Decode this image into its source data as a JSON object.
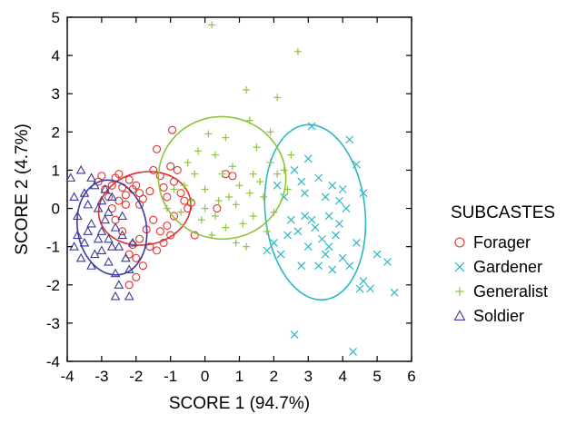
{
  "chart_data": {
    "type": "scatter",
    "xlabel": "SCORE 1 (94.7%)",
    "ylabel": "SCORE 2 (4.7%)",
    "xlim": [
      -4,
      6
    ],
    "ylim": [
      -4,
      5
    ],
    "xticks": [
      -4,
      -3,
      -2,
      -1,
      0,
      1,
      2,
      3,
      4,
      5,
      6
    ],
    "yticks": [
      -4,
      -3,
      -2,
      -1,
      0,
      1,
      2,
      3,
      4,
      5
    ],
    "grid": false,
    "legend": {
      "title": "SUBCASTES",
      "placement": "right"
    },
    "series": [
      {
        "name": "Forager",
        "marker": "circle",
        "color": "#e0302a",
        "ellipse": {
          "cx": -1.75,
          "cy": 0.0,
          "rx": 1.35,
          "ry": 0.95,
          "angle_deg": 12
        },
        "points": [
          [
            -3.1,
            0.7
          ],
          [
            -3.0,
            0.85
          ],
          [
            -2.9,
            0.5
          ],
          [
            -2.8,
            0.3
          ],
          [
            -2.7,
            0.6
          ],
          [
            -2.6,
            0.8
          ],
          [
            -2.5,
            0.9
          ],
          [
            -2.4,
            0.55
          ],
          [
            -2.3,
            0.35
          ],
          [
            -2.2,
            0.75
          ],
          [
            -2.1,
            0.5
          ],
          [
            -2.0,
            0.6
          ],
          [
            -1.9,
            0.4
          ],
          [
            -1.8,
            0.25
          ],
          [
            -1.6,
            0.45
          ],
          [
            -1.5,
            1.0
          ],
          [
            -1.4,
            1.55
          ],
          [
            -1.3,
            0.85
          ],
          [
            -1.2,
            0.55
          ],
          [
            -1.1,
            0.3
          ],
          [
            -1.0,
            1.1
          ],
          [
            -0.95,
            2.05
          ],
          [
            -0.9,
            0.7
          ],
          [
            -0.8,
            1.0
          ],
          [
            -0.7,
            0.4
          ],
          [
            -0.6,
            0.2
          ],
          [
            -0.5,
            0.0
          ],
          [
            -0.4,
            0.15
          ],
          [
            -0.9,
            -0.2
          ],
          [
            -1.1,
            -0.45
          ],
          [
            -1.3,
            -0.6
          ],
          [
            -1.5,
            -0.3
          ],
          [
            -1.7,
            -0.55
          ],
          [
            -1.9,
            -0.8
          ],
          [
            -2.1,
            -0.95
          ],
          [
            -2.2,
            -1.2
          ],
          [
            -2.0,
            -1.3
          ],
          [
            -1.8,
            -1.5
          ],
          [
            -2.0,
            -1.8
          ],
          [
            -2.2,
            -2.0
          ],
          [
            -2.6,
            -0.3
          ],
          [
            -2.4,
            -0.6
          ],
          [
            -2.7,
            0.0
          ],
          [
            -2.5,
            0.2
          ],
          [
            -1.6,
            -1.0
          ],
          [
            -1.2,
            -0.9
          ],
          [
            -1.0,
            -0.7
          ],
          [
            0.35,
            0.0
          ],
          [
            0.6,
            0.9
          ],
          [
            0.8,
            0.85
          ],
          [
            -0.3,
            -0.7
          ],
          [
            -1.4,
            -1.1
          ],
          [
            -2.3,
            0.1
          ],
          [
            -1.9,
            0.1
          ]
        ]
      },
      {
        "name": "Gardener",
        "marker": "x",
        "color": "#2ab8c2",
        "ellipse": {
          "cx": 3.2,
          "cy": -0.1,
          "rx": 1.45,
          "ry": 2.3,
          "angle_deg": 6
        },
        "points": [
          [
            2.6,
            1.0
          ],
          [
            2.8,
            0.7
          ],
          [
            3.0,
            1.3
          ],
          [
            3.1,
            2.15
          ],
          [
            3.3,
            0.8
          ],
          [
            3.5,
            0.3
          ],
          [
            3.7,
            0.6
          ],
          [
            3.9,
            0.2
          ],
          [
            4.1,
            0.0
          ],
          [
            4.2,
            1.8
          ],
          [
            4.4,
            1.15
          ],
          [
            4.6,
            0.4
          ],
          [
            2.3,
            0.3
          ],
          [
            2.5,
            -0.3
          ],
          [
            2.7,
            -0.6
          ],
          [
            2.9,
            -0.2
          ],
          [
            3.2,
            -0.5
          ],
          [
            3.4,
            -0.8
          ],
          [
            3.6,
            -1.0
          ],
          [
            3.8,
            -0.7
          ],
          [
            4.0,
            -1.3
          ],
          [
            4.2,
            -1.5
          ],
          [
            4.4,
            -0.9
          ],
          [
            4.6,
            -1.9
          ],
          [
            4.8,
            -2.1
          ],
          [
            5.0,
            -1.2
          ],
          [
            5.3,
            -1.4
          ],
          [
            5.5,
            -2.2
          ],
          [
            4.5,
            -2.1
          ],
          [
            3.3,
            -1.5
          ],
          [
            3.0,
            -1.0
          ],
          [
            2.8,
            -1.5
          ],
          [
            2.2,
            -1.2
          ],
          [
            2.0,
            -0.9
          ],
          [
            1.8,
            -1.1
          ],
          [
            2.4,
            -0.7
          ],
          [
            2.1,
            0.6
          ],
          [
            3.6,
            -0.2
          ],
          [
            3.9,
            -0.4
          ],
          [
            2.6,
            -3.3
          ],
          [
            4.3,
            -3.75
          ],
          [
            3.1,
            -0.3
          ],
          [
            3.5,
            -1.2
          ],
          [
            4.0,
            0.5
          ],
          [
            2.9,
            0.4
          ],
          [
            3.7,
            -1.6
          ]
        ]
      },
      {
        "name": "Generalist",
        "marker": "plus",
        "color": "#8fc340",
        "ellipse": {
          "cx": 0.5,
          "cy": 0.8,
          "rx": 1.85,
          "ry": 1.6,
          "angle_deg": -4
        },
        "points": [
          [
            0.2,
            4.8
          ],
          [
            2.7,
            4.1
          ],
          [
            1.2,
            3.1
          ],
          [
            2.1,
            2.9
          ],
          [
            1.3,
            2.3
          ],
          [
            1.9,
            2.0
          ],
          [
            0.6,
            1.85
          ],
          [
            0.1,
            1.95
          ],
          [
            0.3,
            1.4
          ],
          [
            -0.5,
            1.2
          ],
          [
            -0.2,
            1.5
          ],
          [
            0.8,
            1.1
          ],
          [
            1.5,
            1.6
          ],
          [
            2.5,
            1.4
          ],
          [
            2.3,
            1.0
          ],
          [
            1.0,
            0.6
          ],
          [
            0.5,
            0.9
          ],
          [
            0.0,
            0.5
          ],
          [
            -0.4,
            0.2
          ],
          [
            -0.7,
            -0.1
          ],
          [
            0.3,
            -0.2
          ],
          [
            0.9,
            0.1
          ],
          [
            1.4,
            -0.2
          ],
          [
            1.7,
            0.3
          ],
          [
            2.0,
            -0.1
          ],
          [
            0.6,
            -0.5
          ],
          [
            1.1,
            -0.4
          ],
          [
            -0.1,
            -0.3
          ],
          [
            -0.9,
            0.5
          ],
          [
            -1.1,
            0.0
          ],
          [
            1.6,
            0.7
          ],
          [
            2.4,
            0.5
          ],
          [
            0.4,
            0.2
          ],
          [
            0.7,
            0.3
          ],
          [
            1.3,
            0.4
          ],
          [
            -0.6,
            0.6
          ],
          [
            1.8,
            -0.6
          ],
          [
            0.2,
            -0.7
          ],
          [
            0.9,
            -0.9
          ],
          [
            1.2,
            -1.0
          ],
          [
            2.1,
            0.9
          ],
          [
            1.9,
            1.2
          ],
          [
            -0.3,
            0.9
          ],
          [
            0.0,
            0.0
          ],
          [
            1.4,
            0.9
          ]
        ]
      },
      {
        "name": "Soldier",
        "marker": "triangle",
        "color": "#3a3a9a",
        "ellipse": {
          "cx": -2.7,
          "cy": -0.5,
          "rx": 1.0,
          "ry": 1.25,
          "angle_deg": 10
        },
        "points": [
          [
            -3.9,
            0.8
          ],
          [
            -3.6,
            1.0
          ],
          [
            -3.5,
            0.4
          ],
          [
            -3.8,
            0.3
          ],
          [
            -3.7,
            -0.2
          ],
          [
            -3.4,
            0.1
          ],
          [
            -3.3,
            -0.4
          ],
          [
            -3.2,
            0.6
          ],
          [
            -3.1,
            0.0
          ],
          [
            -3.0,
            -0.6
          ],
          [
            -2.9,
            -0.3
          ],
          [
            -2.8,
            -0.8
          ],
          [
            -2.7,
            0.3
          ],
          [
            -2.6,
            -0.5
          ],
          [
            -2.5,
            -1.0
          ],
          [
            -2.4,
            -0.7
          ],
          [
            -2.3,
            -1.3
          ],
          [
            -2.2,
            -1.6
          ],
          [
            -2.6,
            -1.7
          ],
          [
            -3.2,
            -1.2
          ],
          [
            -3.5,
            -0.9
          ],
          [
            -3.6,
            -1.3
          ],
          [
            -3.3,
            -1.5
          ],
          [
            -3.0,
            -1.1
          ],
          [
            -2.8,
            -1.4
          ],
          [
            -3.4,
            -0.6
          ],
          [
            -3.7,
            -0.7
          ],
          [
            -2.5,
            -2.0
          ],
          [
            -2.2,
            -2.3
          ],
          [
            -2.7,
            -1.0
          ],
          [
            -2.9,
            0.5
          ],
          [
            -3.1,
            -0.8
          ],
          [
            -2.4,
            -0.2
          ],
          [
            -2.1,
            -0.9
          ],
          [
            -3.8,
            -1.0
          ],
          [
            -3.3,
            0.8
          ],
          [
            -2.6,
            -2.3
          ],
          [
            -3.0,
            0.2
          ],
          [
            -2.8,
            -0.1
          ]
        ]
      }
    ]
  }
}
